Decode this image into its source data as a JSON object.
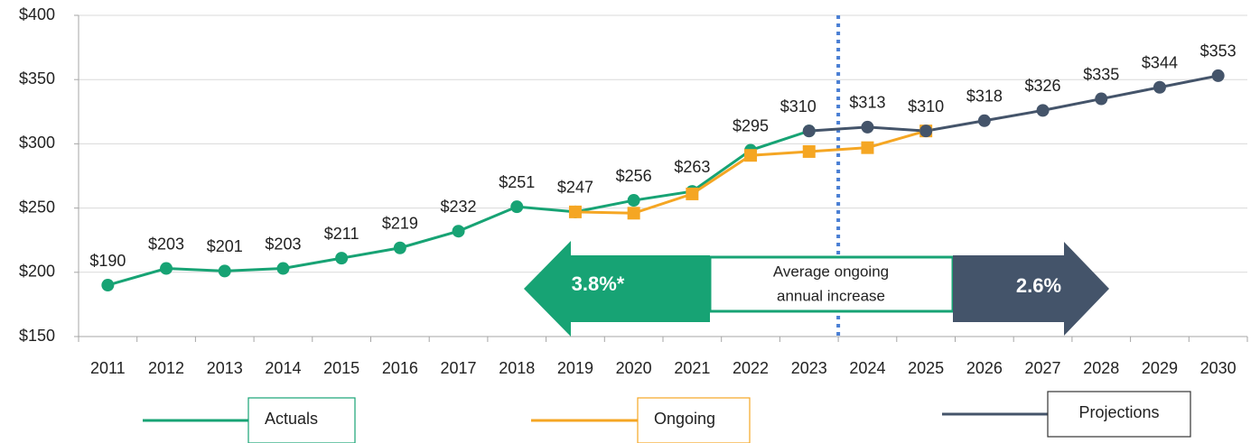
{
  "chart_data": {
    "type": "line",
    "categories": [
      "2011",
      "2012",
      "2013",
      "2014",
      "2015",
      "2016",
      "2017",
      "2018",
      "2019",
      "2020",
      "2021",
      "2022",
      "2023",
      "2024",
      "2025",
      "2026",
      "2027",
      "2028",
      "2029",
      "2030"
    ],
    "series": [
      {
        "name": "Actuals",
        "color": "#17a374",
        "marker": "circle",
        "values": [
          190,
          203,
          201,
          203,
          211,
          219,
          232,
          251,
          247,
          256,
          263,
          295,
          310,
          null,
          null,
          null,
          null,
          null,
          null,
          null
        ],
        "value_labels": [
          "$190",
          "$203",
          "$201",
          "$203",
          "$211",
          "$219",
          "$232",
          "$251",
          "$247",
          "$256",
          "$263",
          "$295",
          "$310",
          null,
          null,
          null,
          null,
          null,
          null,
          null
        ]
      },
      {
        "name": "Ongoing",
        "color": "#f5a623",
        "marker": "square",
        "values": [
          null,
          null,
          null,
          null,
          null,
          null,
          null,
          null,
          247,
          246,
          261,
          291,
          294,
          297,
          310,
          null,
          null,
          null,
          null,
          null
        ]
      },
      {
        "name": "Projections",
        "color": "#44546a",
        "marker": "circle",
        "values": [
          null,
          null,
          null,
          null,
          null,
          null,
          null,
          null,
          null,
          null,
          null,
          null,
          310,
          313,
          310,
          318,
          326,
          335,
          344,
          353
        ],
        "value_labels": [
          null,
          null,
          null,
          null,
          null,
          null,
          null,
          null,
          null,
          null,
          null,
          null,
          null,
          "$313",
          "$310",
          "$318",
          "$326",
          "$335",
          "$344",
          "$353"
        ]
      }
    ],
    "ylim": [
      150,
      400
    ],
    "yticks": [
      {
        "value": 150,
        "label": "$150"
      },
      {
        "value": 200,
        "label": "$200"
      },
      {
        "value": 250,
        "label": "$250"
      },
      {
        "value": 300,
        "label": "$300"
      },
      {
        "value": 350,
        "label": "$350"
      },
      {
        "value": 400,
        "label": "$400"
      }
    ],
    "grid": true,
    "annotations": {
      "left_rate": "3.8%*",
      "center_text": [
        "Average ongoing",
        "annual increase"
      ],
      "right_rate": "2.6%"
    }
  }
}
